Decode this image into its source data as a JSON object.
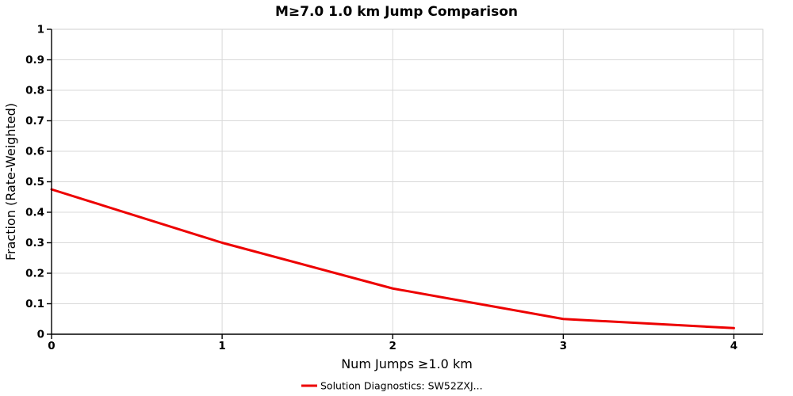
{
  "chart_data": {
    "type": "line",
    "title": "M≥7.0 1.0 km Jump Comparison",
    "xlabel": "Num Jumps ≥1.0 km",
    "ylabel": "Fraction (Rate-Weighted)",
    "x": [
      0,
      1,
      2,
      3,
      4
    ],
    "series": [
      {
        "name": "Solution Diagnostics: SW52ZXJ...",
        "color": "#ed0000",
        "values": [
          0.475,
          0.3,
          0.15,
          0.05,
          0.02
        ]
      }
    ],
    "xlim": [
      0,
      4.17
    ],
    "ylim": [
      0,
      1
    ],
    "xticks": [
      0,
      1,
      2,
      3,
      4
    ],
    "yticks": [
      0,
      0.1,
      0.2,
      0.3,
      0.4,
      0.5,
      0.6,
      0.7,
      0.8,
      0.9,
      1
    ],
    "grid": true,
    "legend_position": "bottom",
    "background_color": "#ffffff",
    "grid_color": "#d9d9d9"
  }
}
